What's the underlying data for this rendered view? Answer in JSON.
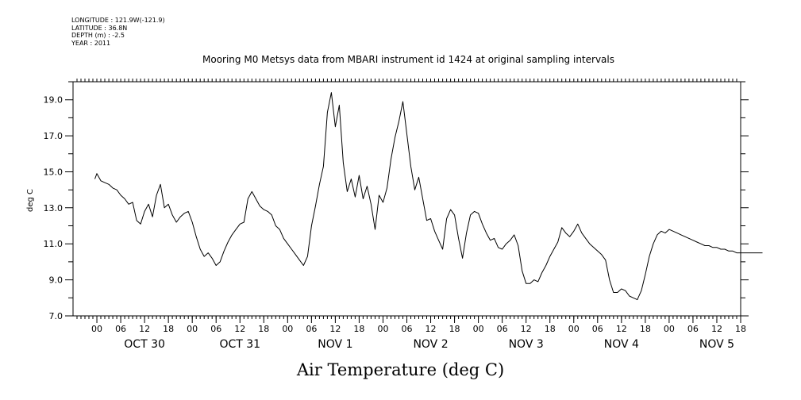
{
  "metadata": {
    "longitude": "LONGITUDE : 121.9W(-121.9)",
    "latitude": "LATITUDE : 36.8N",
    "depth": "DEPTH (m) : -2.5",
    "year": "YEAR : 2011"
  },
  "chart_data": {
    "type": "line",
    "title": "Mooring M0 Metsys data from MBARI instrument id 1424 at original sampling intervals",
    "xlabel": "Air Temperature (deg C)",
    "ylabel": "deg C",
    "ylim": [
      7.0,
      20.0
    ],
    "y_ticks": [
      "7.0",
      "9.0",
      "11.0",
      "13.0",
      "15.0",
      "17.0",
      "19.0"
    ],
    "x_range_hours": [
      -6,
      162
    ],
    "x_hour_ticks": [
      "00",
      "06",
      "12",
      "18",
      "00",
      "06",
      "12",
      "18",
      "00",
      "06",
      "12",
      "18",
      "00",
      "06",
      "12",
      "18",
      "00",
      "06",
      "12",
      "18",
      "00",
      "06",
      "12",
      "18",
      "00",
      "06",
      "12",
      "18"
    ],
    "x_day_labels": [
      "OCT 30",
      "OCT 31",
      "NOV  1",
      "NOV  2",
      "NOV  3",
      "NOV  4",
      "NOV  5"
    ],
    "grid": false,
    "series": [
      {
        "x": [
          -0.5,
          0,
          1,
          2,
          3,
          4,
          5,
          6,
          7,
          8,
          9,
          10,
          11,
          12,
          13,
          14,
          15,
          16,
          17,
          18,
          19,
          20,
          21,
          22,
          23,
          24,
          25,
          26,
          27,
          28,
          29,
          30,
          31,
          32,
          33,
          34,
          35,
          36,
          37,
          38,
          39,
          40,
          41,
          42,
          43,
          44,
          45,
          46,
          47,
          48,
          49,
          50,
          51,
          52,
          53,
          54,
          55,
          56,
          57,
          58,
          59,
          60,
          61,
          62,
          63,
          64,
          65,
          66,
          67,
          68,
          69,
          70,
          71,
          72,
          73,
          74,
          75,
          76,
          77,
          78,
          79,
          80,
          81,
          82,
          83,
          84,
          85,
          86,
          87,
          88,
          89,
          90,
          91,
          92,
          93,
          94,
          95,
          96,
          97,
          98,
          99,
          100,
          101,
          102,
          103,
          104,
          105,
          106,
          107,
          108,
          109,
          110,
          111,
          112,
          113,
          114,
          115,
          116,
          117,
          118,
          119,
          120,
          121,
          122,
          123,
          124,
          125,
          126,
          127,
          128,
          129,
          130,
          131,
          132,
          133,
          134,
          135,
          136,
          137,
          138,
          139,
          140,
          141,
          142,
          143,
          144,
          145,
          146,
          147,
          148,
          149,
          150,
          151,
          152,
          153,
          154,
          155,
          156,
          157,
          158,
          159,
          160,
          161,
          162,
          163,
          164,
          165,
          166,
          167,
          167.5
        ],
        "y": [
          14.6,
          14.9,
          14.5,
          14.4,
          14.3,
          14.1,
          14.0,
          13.7,
          13.5,
          13.2,
          13.3,
          12.3,
          12.1,
          12.8,
          13.2,
          12.5,
          13.7,
          14.3,
          13.0,
          13.2,
          12.6,
          12.2,
          12.5,
          12.7,
          12.8,
          12.2,
          11.4,
          10.7,
          10.3,
          10.5,
          10.2,
          9.8,
          10.0,
          10.6,
          11.1,
          11.5,
          11.8,
          12.1,
          12.2,
          13.5,
          13.9,
          13.5,
          13.1,
          12.9,
          12.8,
          12.6,
          12.0,
          11.8,
          11.3,
          11.0,
          10.7,
          10.4,
          10.1,
          9.8,
          10.3,
          12.0,
          13.1,
          14.3,
          15.3,
          18.3,
          19.4,
          17.5,
          18.7,
          15.5,
          13.9,
          14.6,
          13.6,
          14.8,
          13.5,
          14.2,
          13.2,
          11.8,
          13.7,
          13.3,
          14.1,
          15.7,
          16.9,
          17.8,
          18.9,
          17.1,
          15.3,
          14.0,
          14.7,
          13.5,
          12.3,
          12.4,
          11.7,
          11.2,
          10.7,
          12.4,
          12.9,
          12.6,
          11.3,
          10.2,
          11.6,
          12.6,
          12.8,
          12.7,
          12.1,
          11.6,
          11.2,
          11.3,
          10.8,
          10.7,
          11.0,
          11.2,
          11.5,
          10.9,
          9.5,
          8.8,
          8.8,
          9.0,
          8.9,
          9.4,
          9.8,
          10.3,
          10.7,
          11.1,
          11.9,
          11.6,
          11.4,
          11.7,
          12.1,
          11.6,
          11.3,
          11.0,
          10.8,
          10.6,
          10.4,
          10.1,
          9.0,
          8.3,
          8.3,
          8.5,
          8.4,
          8.1,
          8.0,
          7.9,
          8.4,
          9.3,
          10.3,
          11.0,
          11.5,
          11.7,
          11.6,
          11.8,
          11.7,
          11.6,
          11.5,
          11.4,
          11.3,
          11.2,
          11.1,
          11.0,
          10.9,
          10.9,
          10.8,
          10.8,
          10.7,
          10.7,
          10.6,
          10.6,
          10.5,
          10.5,
          10.5,
          10.5,
          10.5,
          10.5,
          10.5,
          10.5
        ]
      }
    ]
  }
}
